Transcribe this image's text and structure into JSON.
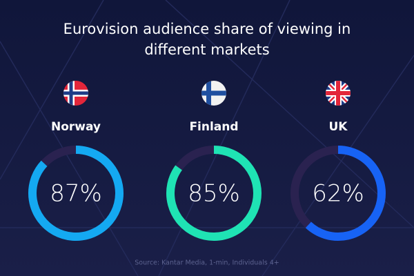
{
  "chart_data": {
    "type": "donut",
    "title": "Eurovision audience share of viewing in different markets",
    "categories": [
      "Norway",
      "Finland",
      "UK"
    ],
    "values": [
      87,
      85,
      62
    ],
    "value_labels": [
      "87%",
      "85%",
      "62%"
    ],
    "colors": [
      "#14a9f2",
      "#1fe3b4",
      "#1763f5"
    ],
    "ylim": [
      0,
      100
    ],
    "note": "Source: Kantar Media, 1-min, Individuals 4+"
  }
}
